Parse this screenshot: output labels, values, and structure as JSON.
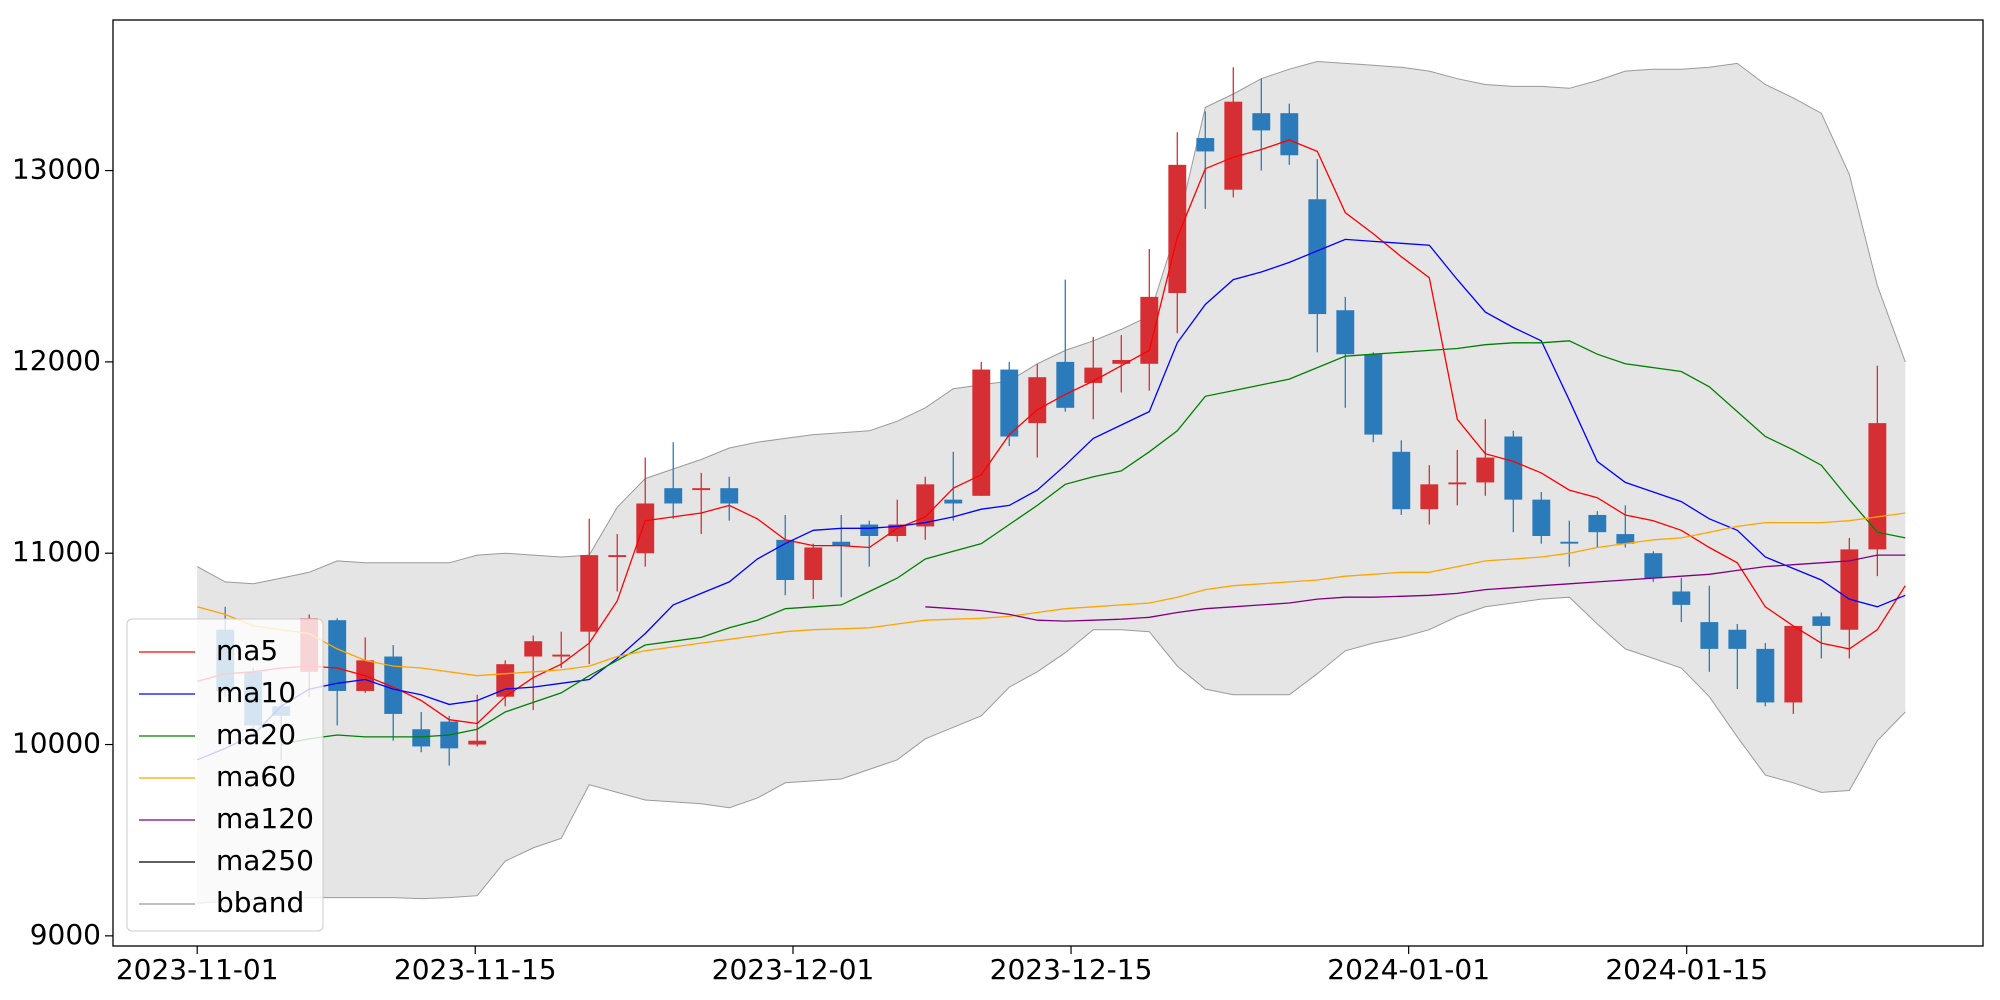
{
  "chart_data": {
    "type": "candlestick",
    "x": [
      0,
      1.41,
      2.82,
      4.23,
      5.64,
      7.05,
      8.46,
      9.87,
      11.28,
      12.69,
      14.1,
      15.51,
      16.92,
      18.33,
      19.74,
      21.15,
      22.56,
      23.97,
      25.38,
      26.79,
      28.2,
      29.61,
      31.02,
      32.43,
      33.84,
      35.25,
      36.66,
      38.07,
      39.48,
      40.89,
      42.3,
      43.71,
      45.12,
      46.53,
      47.94,
      49.35,
      50.76,
      52.17,
      53.58,
      54.99,
      56.4,
      57.81,
      59.22,
      60.63,
      62.04,
      63.45,
      64.86,
      66.27,
      67.68,
      69.09,
      70.5,
      71.91,
      73.32,
      74.73,
      76.14,
      77.55,
      78.96,
      80.37,
      81.78,
      83.19,
      84.6,
      86.01
    ],
    "open": [
      null,
      10600,
      10380,
      10200,
      10380,
      10650,
      10280,
      10460,
      10080,
      10120,
      10000,
      10250,
      10460,
      10460,
      10590,
      10980,
      11000,
      11340,
      11330,
      11340,
      null,
      11070,
      10860,
      11060,
      11150,
      11090,
      11140,
      11280,
      11300,
      11960,
      11680,
      12000,
      11890,
      11990,
      11990,
      12360,
      13170,
      12900,
      13300,
      13300,
      12850,
      12270,
      12040,
      11530,
      11230,
      11360,
      11370,
      11610,
      11280,
      11060,
      11200,
      11100,
      11000,
      10800,
      10640,
      10600,
      10500,
      10220,
      10670,
      10600,
      11020,
      null
    ],
    "high": [
      null,
      10720,
      10400,
      10250,
      10680,
      10660,
      10560,
      10520,
      10170,
      10150,
      10260,
      10440,
      10570,
      10590,
      11180,
      11100,
      11500,
      11580,
      11420,
      11400,
      null,
      11200,
      11050,
      11200,
      11170,
      11280,
      11400,
      11530,
      12000,
      12000,
      11990,
      12430,
      12130,
      12140,
      12590,
      13200,
      13310,
      13540,
      13480,
      13350,
      13060,
      12340,
      12050,
      11590,
      11460,
      11540,
      11700,
      11640,
      11320,
      11170,
      11220,
      11250,
      11010,
      10870,
      10830,
      10630,
      10530,
      10620,
      10690,
      11080,
      11980,
      null
    ],
    "low": [
      null,
      10250,
      10080,
      9920,
      10250,
      10100,
      10270,
      10020,
      9960,
      9890,
      9990,
      10200,
      10180,
      10400,
      10420,
      10800,
      10930,
      11180,
      11100,
      11170,
      null,
      10780,
      10760,
      10770,
      10930,
      11060,
      11070,
      11170,
      11300,
      11560,
      11500,
      11740,
      11700,
      11840,
      11850,
      12150,
      12800,
      12860,
      13000,
      13030,
      12050,
      11760,
      11580,
      11200,
      11150,
      11250,
      11300,
      11110,
      11050,
      10930,
      11030,
      11030,
      10850,
      10640,
      10380,
      10290,
      10200,
      10160,
      10450,
      10450,
      10880,
      null
    ],
    "close": [
      null,
      10280,
      10100,
      10150,
      10660,
      10280,
      10440,
      10160,
      9990,
      9980,
      10020,
      10420,
      10540,
      10470,
      10990,
      10990,
      11260,
      11260,
      11340,
      11260,
      null,
      10860,
      11030,
      11040,
      11090,
      11150,
      11360,
      11260,
      11960,
      11610,
      11920,
      11760,
      11970,
      12010,
      12340,
      13030,
      13100,
      13360,
      13210,
      13080,
      12250,
      12040,
      11620,
      11230,
      11360,
      11370,
      11500,
      11280,
      11090,
      11050,
      11110,
      11050,
      10870,
      10730,
      10500,
      10500,
      10220,
      10620,
      10620,
      11020,
      11680,
      null
    ],
    "up_color": "#d62f33",
    "down_color": "#2b7bba",
    "series": [
      {
        "name": "ma5",
        "color": "#ff0000",
        "values": [
          10330,
          10370,
          10380,
          10400,
          10410,
          10400,
          10360,
          10300,
          10230,
          10130,
          10110,
          10250,
          10350,
          10420,
          10530,
          10750,
          11170,
          11190,
          11210,
          11250,
          11180,
          11070,
          11040,
          11040,
          11030,
          11130,
          11190,
          11340,
          11410,
          11620,
          11750,
          11830,
          11900,
          11980,
          12060,
          12650,
          13010,
          13070,
          13110,
          13160,
          13100,
          12780,
          12670,
          12550,
          12440,
          11700,
          11520,
          11480,
          11420,
          11330,
          11290,
          11200,
          11170,
          11120,
          11030,
          10950,
          10720,
          10620,
          10530,
          10500,
          10600,
          10830
        ]
      },
      {
        "name": "ma10",
        "color": "#0000ff",
        "values": [
          9920,
          9980,
          10050,
          10200,
          10290,
          10320,
          10340,
          10290,
          10260,
          10210,
          10230,
          10290,
          10300,
          10320,
          10340,
          10450,
          10580,
          10730,
          10790,
          10850,
          10970,
          11050,
          11120,
          11130,
          11130,
          11140,
          11160,
          11190,
          11230,
          11250,
          11330,
          11460,
          11600,
          11670,
          11740,
          12100,
          12300,
          12430,
          12470,
          12520,
          12580,
          12640,
          12630,
          12620,
          12610,
          12430,
          12260,
          12180,
          12110,
          11800,
          11480,
          11370,
          11320,
          11270,
          11180,
          11120,
          10980,
          10920,
          10860,
          10760,
          10720,
          10780
        ]
      },
      {
        "name": "ma20",
        "color": "#008000",
        "values": [
          null,
          null,
          null,
          10000,
          10030,
          10050,
          10040,
          10040,
          10040,
          10050,
          10080,
          10170,
          10220,
          10270,
          10360,
          10440,
          10520,
          10540,
          10560,
          10610,
          10650,
          10710,
          10720,
          10730,
          10800,
          10870,
          10970,
          11010,
          11050,
          11150,
          11250,
          11360,
          11400,
          11430,
          11530,
          11640,
          11820,
          11850,
          11880,
          11910,
          11970,
          12030,
          12040,
          12050,
          12060,
          12070,
          12090,
          12100,
          12100,
          12110,
          12040,
          11990,
          11970,
          11950,
          11870,
          11740,
          11610,
          11540,
          11460,
          11280,
          11110,
          11080
        ]
      },
      {
        "name": "ma60",
        "color": "#ffa500",
        "values": [
          10720,
          10680,
          10620,
          10600,
          10580,
          10500,
          10440,
          10410,
          10400,
          10380,
          10360,
          10370,
          10380,
          10390,
          10410,
          10460,
          10490,
          10510,
          10530,
          10550,
          10570,
          10590,
          10600,
          10605,
          10610,
          10630,
          10650,
          10655,
          10660,
          10670,
          10690,
          10710,
          10720,
          10730,
          10740,
          10770,
          10810,
          10830,
          10840,
          10850,
          10860,
          10880,
          10890,
          10900,
          10900,
          10930,
          10960,
          10970,
          10980,
          11000,
          11030,
          11050,
          11070,
          11080,
          11110,
          11140,
          11160,
          11160,
          11160,
          11170,
          11190,
          11210
        ]
      },
      {
        "name": "ma120",
        "color": "#800080",
        "values": [
          null,
          null,
          null,
          null,
          null,
          null,
          null,
          null,
          null,
          null,
          null,
          null,
          null,
          null,
          null,
          null,
          null,
          null,
          null,
          null,
          null,
          null,
          null,
          null,
          null,
          null,
          10720,
          10710,
          10700,
          10680,
          10650,
          10645,
          10650,
          10655,
          10665,
          10690,
          10710,
          10720,
          10730,
          10740,
          10760,
          10770,
          10770,
          10775,
          10780,
          10790,
          10810,
          10820,
          10830,
          10840,
          10850,
          10860,
          10870,
          10880,
          10890,
          10910,
          10930,
          10940,
          10950,
          10960,
          10990,
          10990
        ]
      },
      {
        "name": "ma250",
        "color": "#000000",
        "values": [
          null,
          null,
          null,
          null,
          null,
          null,
          null,
          null,
          null,
          null,
          null,
          null,
          null,
          null,
          null,
          null,
          null,
          null,
          null,
          null,
          null,
          null,
          null,
          null,
          null,
          null,
          null,
          null,
          null,
          null,
          null,
          null,
          null,
          null,
          null,
          null,
          null,
          null,
          null,
          null,
          null,
          null,
          null,
          null,
          null,
          null,
          null,
          null,
          null,
          null,
          null,
          null,
          null,
          null,
          null,
          null,
          null,
          null,
          null,
          null,
          null,
          null
        ]
      }
    ],
    "band": {
      "name": "bband",
      "color": "#9a9a9a",
      "fill": "#e5e5e5",
      "upper": [
        10930,
        10850,
        10840,
        10870,
        10900,
        10960,
        10950,
        10950,
        10950,
        10950,
        10990,
        11000,
        10990,
        10980,
        10990,
        11240,
        11390,
        11440,
        11490,
        11550,
        11580,
        11600,
        11620,
        11630,
        11640,
        11690,
        11760,
        11860,
        11880,
        11900,
        11990,
        12060,
        12110,
        12170,
        12240,
        12700,
        13330,
        13400,
        13480,
        13530,
        13570,
        13560,
        13550,
        13540,
        13520,
        13480,
        13450,
        13440,
        13440,
        13430,
        13470,
        13520,
        13530,
        13530,
        13540,
        13560,
        13450,
        13380,
        13300,
        12980,
        12400,
        12000
      ],
      "lower": [
        9170,
        9180,
        9190,
        9195,
        9200,
        9200,
        9200,
        9200,
        9195,
        9200,
        9210,
        9390,
        9460,
        9510,
        9790,
        9750,
        9710,
        9700,
        9690,
        9670,
        9720,
        9800,
        9810,
        9820,
        9870,
        9920,
        10030,
        10090,
        10150,
        10300,
        10380,
        10480,
        10600,
        10600,
        10590,
        10410,
        10290,
        10260,
        10260,
        10260,
        10370,
        10490,
        10530,
        10560,
        10600,
        10670,
        10720,
        10740,
        10760,
        10770,
        10630,
        10500,
        10450,
        10400,
        10250,
        10040,
        9840,
        9800,
        9750,
        9760,
        10020,
        10170
      ]
    },
    "xlim": [
      -4.24,
      89.92
    ],
    "ylim": [
      8947,
      13787
    ],
    "xticks": [
      {
        "value": 0,
        "label": "2023-11-01"
      },
      {
        "value": 14,
        "label": "2023-11-15"
      },
      {
        "value": 30,
        "label": "2023-12-01"
      },
      {
        "value": 44,
        "label": "2023-12-15"
      },
      {
        "value": 61,
        "label": "2024-01-01"
      },
      {
        "value": 75,
        "label": "2024-01-15"
      }
    ],
    "yticks": [
      9000,
      10000,
      11000,
      12000,
      13000
    ],
    "legend": "lower left"
  }
}
